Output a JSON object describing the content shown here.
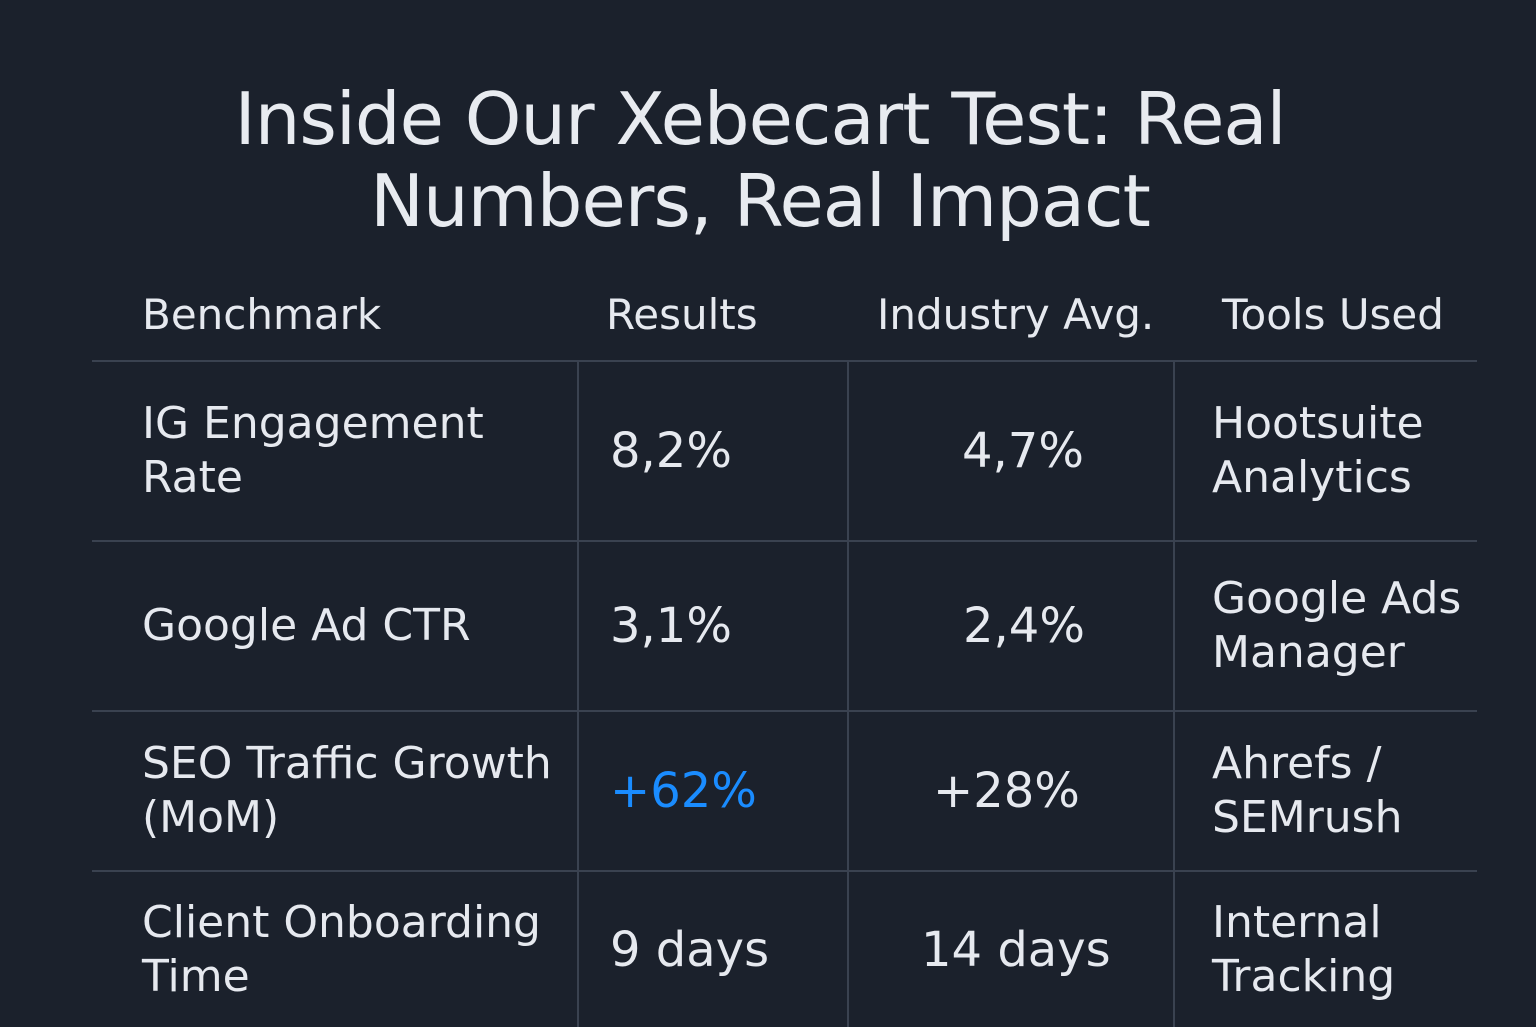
{
  "title": {
    "line1": "Inside Our Xebecart Test: Real",
    "line2": "Numbers, Real Impact"
  },
  "table": {
    "headers": [
      "Benchmark",
      "Results",
      "Industry Avg.",
      "Tools Used"
    ],
    "rows": [
      {
        "benchmark": [
          "IG Engagement",
          "Rate"
        ],
        "result": "8,2%",
        "industry_avg": "4,7%",
        "tools": [
          "Hootsuite",
          "Analytics"
        ]
      },
      {
        "benchmark": [
          "Google Ad CTR"
        ],
        "result": "3,1%",
        "industry_avg": "2,4%",
        "tools": [
          "Google Ads",
          "Manager"
        ]
      },
      {
        "benchmark": [
          "SEO Traffic Growth",
          "(MoM)"
        ],
        "result": "+62%",
        "industry_avg": "+28%",
        "tools": [
          "Ahrefs /",
          "SEMrush"
        ]
      },
      {
        "benchmark": [
          "Client Onboarding",
          "Time"
        ],
        "result": "9 days",
        "industry_avg": "14 days",
        "tools": [
          "Internal",
          "Tracking"
        ]
      }
    ]
  },
  "colors": {
    "background": "#1b212c",
    "text": "#e6e9ef",
    "highlight": "#1a8cff",
    "grid": "#3a4250"
  }
}
